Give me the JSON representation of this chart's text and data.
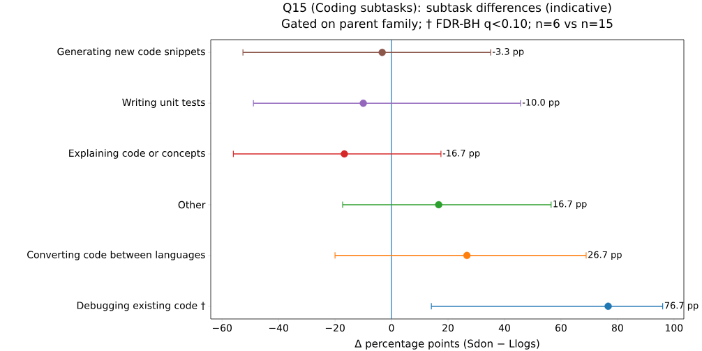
{
  "chart_data": {
    "type": "scatter",
    "orientation": "horizontal",
    "title": "Q15 (Coding subtasks): subtask differences (indicative)",
    "subtitle": "Gated on parent family; † FDR-BH q<0.10; n=6 vs n=15",
    "xlabel": "Δ percentage points (Sdon − Llogs)",
    "categories": [
      "Generating new code snippets",
      "Writing unit tests",
      "Explaining code or concepts",
      "Other",
      "Converting code between languages",
      "Debugging existing code †"
    ],
    "values": [
      -3.3,
      -10.0,
      -16.7,
      16.7,
      26.7,
      76.7
    ],
    "errors": [
      [
        -52.6,
        35.1
      ],
      [
        -48.9,
        45.7
      ],
      [
        -56.0,
        17.5
      ],
      [
        -17.3,
        56.5
      ],
      [
        -20.0,
        68.9
      ],
      [
        14.1,
        96.0
      ]
    ],
    "annotations": [
      {
        "text": "-3.3 pp",
        "x": 35.1,
        "y": "Generating new code snippets"
      },
      {
        "text": "-10.0 pp",
        "x": 45.7,
        "y": "Writing unit tests"
      },
      {
        "text": "-16.7 pp",
        "x": 17.5,
        "y": "Explaining code or concepts"
      },
      {
        "text": "16.7 pp",
        "x": 56.5,
        "y": "Other"
      },
      {
        "text": "26.7 pp",
        "x": 68.9,
        "y": "Converting code between languages"
      },
      {
        "text": "76.7 pp",
        "x": 96.0,
        "y": "Debugging existing code †"
      }
    ],
    "colors": [
      "#8c564b",
      "#9467bd",
      "#d62728",
      "#2ca02c",
      "#ff7f0e",
      "#1f77b4"
    ],
    "marker": "circle",
    "xlim": [
      -64,
      103.5
    ],
    "xticks": [
      {
        "value": -60,
        "label": "−60"
      },
      {
        "value": -40,
        "label": "−40"
      },
      {
        "value": -20,
        "label": "−20"
      },
      0,
      20,
      40,
      60,
      80,
      100
    ],
    "ref_lines": [
      {
        "axis": "x",
        "value": 0,
        "color": "#1f77b4"
      }
    ],
    "grid": false,
    "legend": false
  }
}
